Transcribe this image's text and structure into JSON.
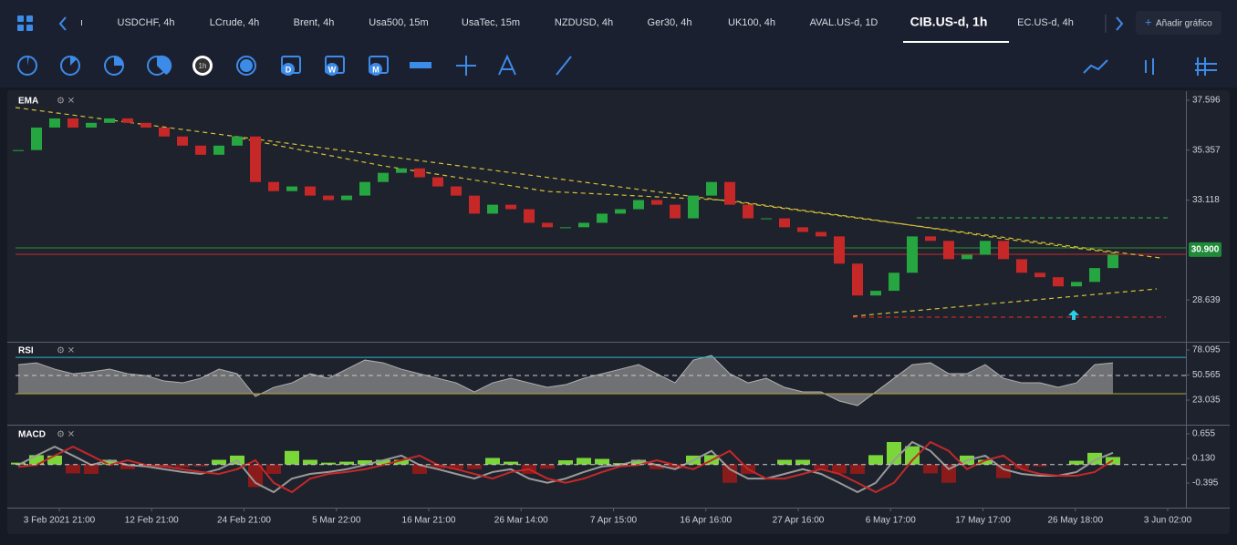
{
  "partial_tab": "ı",
  "tabs": [
    "USDCHF, 4h",
    "LCrude, 4h",
    "Brent, 4h",
    "Usa500, 15m",
    "UsaTec, 15m",
    "NZDUSD, 4h",
    "Ger30, 4h",
    "UK100, 4h",
    "AVAL.US-d, 1D",
    "CIB.US-d, 1h",
    "EC.US-d, 4h"
  ],
  "active_tab": 9,
  "add_chart": "Añadir gráfico",
  "toolbar_labels": [
    "1h",
    "D",
    "W",
    "M"
  ],
  "time_axis": [
    "3 Feb 2021 21:00",
    "12 Feb 21:00",
    "24 Feb 21:00",
    "5 Mar 22:00",
    "16 Mar 21:00",
    "26 Mar 14:00",
    "7 Apr 15:00",
    "16 Apr 16:00",
    "27 Apr 16:00",
    "6 May 17:00",
    "17 May 17:00",
    "26 May 18:00",
    "3 Jun 02:00"
  ],
  "chart_data": [
    {
      "type": "candlestick",
      "title": "EMA",
      "up_color": "#26a641",
      "down_color": "#c62828",
      "values": [
        35.36,
        36.37,
        36.78,
        36.37,
        36.58,
        36.78,
        36.58,
        36.37,
        35.97,
        35.56,
        35.15,
        35.56,
        35.97,
        33.93,
        33.52,
        33.73,
        33.32,
        33.12,
        33.32,
        33.93,
        34.34,
        34.54,
        34.14,
        33.73,
        33.32,
        32.51,
        32.91,
        32.71,
        32.1,
        31.9,
        31.9,
        32.1,
        32.51,
        32.71,
        33.12,
        32.91,
        32.3,
        33.32,
        33.93,
        32.91,
        32.3,
        32.3,
        31.9,
        31.69,
        31.49,
        30.27,
        28.84,
        29.05,
        29.86,
        31.49,
        31.29,
        30.47,
        30.67,
        31.29,
        30.47,
        29.86,
        29.66,
        29.25,
        29.45,
        30.07,
        30.67
      ],
      "ylim": [
        26.766,
        38.003
      ],
      "yticks": [
        37.596,
        35.357,
        33.118,
        28.639
      ],
      "price_marker": {
        "value": 30.9,
        "label": "30.900",
        "color": "#1f8a3a"
      }
    },
    {
      "type": "area",
      "title": "RSI",
      "color": "#8c8c8c",
      "values": [
        62,
        64,
        57,
        52,
        54,
        57,
        52,
        50,
        44,
        42,
        47,
        57,
        52,
        27,
        37,
        42,
        52,
        47,
        57,
        67,
        64,
        57,
        52,
        47,
        42,
        32,
        42,
        47,
        42,
        37,
        40,
        47,
        52,
        57,
        62,
        52,
        42,
        67,
        72,
        52,
        42,
        47,
        37,
        32,
        32,
        22,
        17,
        32,
        47,
        62,
        64,
        52,
        52,
        62,
        47,
        42,
        42,
        37,
        42,
        62,
        64
      ],
      "ylim": [
        -3,
        85.1
      ],
      "yticks": [
        78.095,
        50.565,
        23.035
      ],
      "levels": [
        {
          "value": 70,
          "color": "#29b6c8"
        },
        {
          "value": 30,
          "color": "#b8a83a"
        },
        {
          "value": 50,
          "color": "#cccccc",
          "dashed": true
        }
      ]
    },
    {
      "type": "macd",
      "title": "MACD",
      "series": [
        {
          "name": "MACD",
          "color": "#9a9a9a",
          "values": [
            -0.01,
            0.19,
            0.38,
            0.19,
            -0.01,
            0.09,
            -0.01,
            -0.04,
            -0.1,
            -0.16,
            -0.2,
            -0.1,
            0.09,
            -0.39,
            -0.59,
            -0.3,
            -0.2,
            -0.16,
            -0.1,
            -0.01,
            0.09,
            0.19,
            -0.01,
            -0.1,
            -0.2,
            -0.3,
            -0.16,
            -0.1,
            -0.3,
            -0.39,
            -0.3,
            -0.16,
            -0.04,
            -0.01,
            0.09,
            -0.01,
            -0.1,
            0.09,
            0.29,
            -0.1,
            -0.3,
            -0.3,
            -0.2,
            -0.1,
            -0.2,
            -0.39,
            -0.59,
            -0.39,
            0.09,
            0.48,
            0.29,
            -0.1,
            0.09,
            0.19,
            -0.1,
            -0.2,
            -0.24,
            -0.24,
            -0.16,
            0.09,
            0.25
          ]
        },
        {
          "name": "Signal",
          "color": "#c62828",
          "values": [
            -0.05,
            -0.01,
            0.19,
            0.38,
            0.19,
            -0.01,
            0.09,
            -0.01,
            -0.04,
            -0.1,
            -0.16,
            -0.2,
            -0.1,
            0.09,
            -0.39,
            -0.59,
            -0.3,
            -0.2,
            -0.16,
            -0.1,
            -0.01,
            0.09,
            0.19,
            -0.01,
            -0.1,
            -0.2,
            -0.3,
            -0.16,
            -0.1,
            -0.3,
            -0.39,
            -0.3,
            -0.16,
            -0.04,
            -0.01,
            0.09,
            -0.01,
            -0.1,
            0.09,
            0.29,
            -0.1,
            -0.3,
            -0.3,
            -0.2,
            -0.1,
            -0.2,
            -0.39,
            -0.59,
            -0.39,
            0.09,
            0.48,
            0.29,
            -0.1,
            0.09,
            0.19,
            -0.1,
            -0.2,
            -0.24,
            -0.24,
            -0.16,
            0.09
          ]
        }
      ],
      "histogram": [
        0.04,
        0.2,
        0.19,
        -0.19,
        -0.2,
        0.1,
        -0.1,
        -0.03,
        -0.06,
        -0.06,
        -0.04,
        0.1,
        0.19,
        -0.48,
        -0.2,
        0.29,
        0.1,
        0.04,
        0.06,
        0.09,
        0.1,
        0.1,
        -0.2,
        -0.09,
        -0.1,
        -0.1,
        0.14,
        0.06,
        -0.2,
        -0.09,
        0.09,
        0.14,
        0.12,
        0.03,
        0.1,
        -0.1,
        -0.09,
        0.19,
        0.2,
        -0.39,
        -0.2,
        0.0,
        0.1,
        0.1,
        -0.1,
        -0.19,
        -0.2,
        0.2,
        0.48,
        0.39,
        -0.19,
        -0.39,
        0.19,
        0.1,
        -0.29,
        -0.1,
        -0.04,
        0.0,
        0.08,
        0.25,
        0.16
      ],
      "histogram_colors": [
        "#7bd63a",
        "#8b1a1a"
      ],
      "ylim": [
        -0.881,
        0.83
      ],
      "yticks": [
        0.655,
        {
          "value": 0.13,
          "label": "0.130"
        },
        -0.395
      ]
    }
  ]
}
